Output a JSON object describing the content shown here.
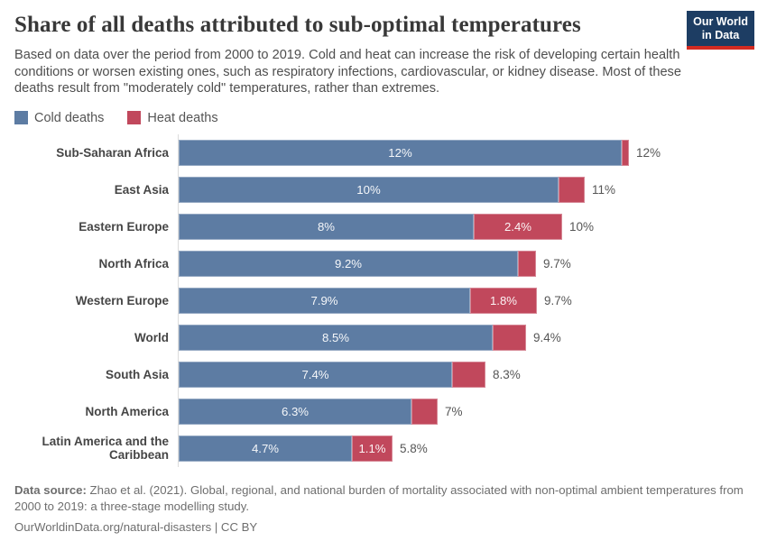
{
  "header": {
    "title": "Share of all deaths attributed to sub-optimal temperatures",
    "subtitle": "Based on data over the period from 2000 to 2019. Cold and heat can increase the risk of developing certain health conditions or worsen existing ones, such as respiratory infections, cardiovascular, or kidney disease. Most of these deaths result from \"moderately cold\" temperatures, rather than extremes.",
    "logo": {
      "line1": "Our World",
      "line2": "in Data"
    }
  },
  "colors": {
    "cold": "#5d7ca3",
    "heat": "#c1485c",
    "logo_bg": "#1d3d63",
    "logo_stripe": "#d42b21",
    "axis_line": "#dcdcdc"
  },
  "legend": [
    {
      "label": "Cold deaths",
      "color": "#5d7ca3"
    },
    {
      "label": "Heat deaths",
      "color": "#c1485c"
    }
  ],
  "chart_data": {
    "type": "bar",
    "orientation": "horizontal",
    "stacked": true,
    "title": "Share of all deaths attributed to sub-optimal temperatures",
    "xlabel": "",
    "ylabel": "",
    "xlim": [
      0,
      15
    ],
    "grid": false,
    "legend_position": "top-left",
    "categories": [
      "Sub-Saharan Africa",
      "East Asia",
      "Eastern Europe",
      "North Africa",
      "Western Europe",
      "World",
      "South Asia",
      "North America",
      "Latin America and the Caribbean"
    ],
    "series": [
      {
        "name": "Cold deaths",
        "values": [
          12.0,
          10.3,
          8.0,
          9.2,
          7.9,
          8.5,
          7.4,
          6.3,
          4.7
        ],
        "labels": [
          "12%",
          "10%",
          "8%",
          "9.2%",
          "7.9%",
          "8.5%",
          "7.4%",
          "6.3%",
          "4.7%"
        ]
      },
      {
        "name": "Heat deaths",
        "values": [
          0.2,
          0.7,
          2.4,
          0.5,
          1.8,
          0.9,
          0.9,
          0.7,
          1.1
        ],
        "labels": [
          "",
          "",
          "2.4%",
          "",
          "1.8%",
          "",
          "",
          "",
          "1.1%"
        ]
      }
    ],
    "totals": [
      "12%",
      "11%",
      "10%",
      "9.7%",
      "9.7%",
      "9.4%",
      "8.3%",
      "7%",
      "5.8%"
    ]
  },
  "footer": {
    "source_label": "Data source:",
    "source_text": " Zhao et al. (2021). Global, regional, and national burden of mortality associated with non-optimal ambient temperatures from 2000 to 2019: a three-stage modelling study.",
    "note": "OurWorldinData.org/natural-disasters | CC BY"
  }
}
